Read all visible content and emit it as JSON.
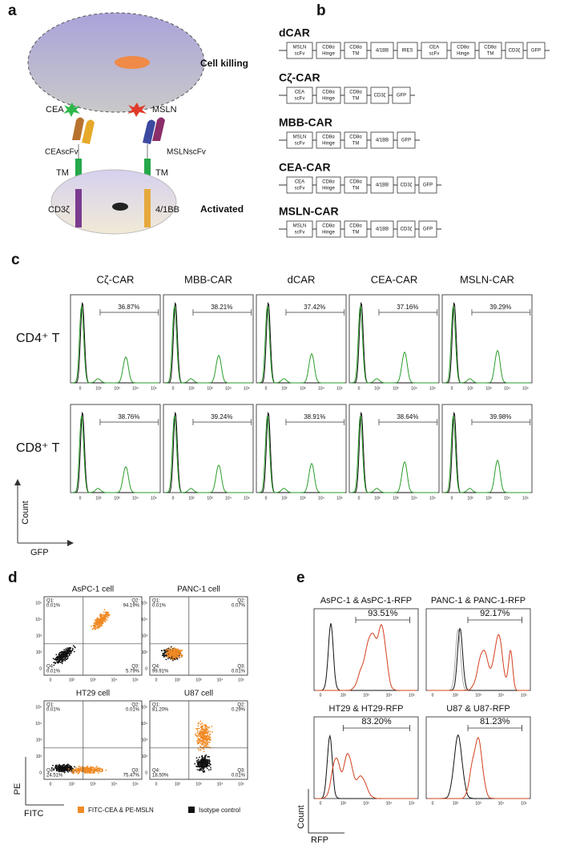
{
  "panel_a": {
    "label": "a",
    "cell_killing": "Cell killing",
    "cea": "CEA",
    "msln": "MSLN",
    "cea_scfv": "CEAscFv",
    "msln_scfv": "MSLNscFv",
    "tm_left": "TM",
    "tm_right": "TM",
    "cd3z": "CD3ζ",
    "bb": "4/1BB",
    "activated": "Activated"
  },
  "panel_b": {
    "label": "b",
    "constructs": [
      {
        "name": "dCAR",
        "parts": [
          [
            "MSLN",
            "scFv"
          ],
          [
            "CD8α",
            "Hinge"
          ],
          [
            "CD8α",
            "TM"
          ],
          [
            "4/1BB"
          ],
          [
            "IRES"
          ],
          [
            "CEA",
            "scFv"
          ],
          [
            "CD8α",
            "Hinge"
          ],
          [
            "CD8α",
            "TM"
          ],
          [
            "CD3ζ"
          ],
          [
            "GFP"
          ]
        ]
      },
      {
        "name": "Cζ-CAR",
        "parts": [
          [
            "CEA",
            "scFv"
          ],
          [
            "CD8α",
            "Hinge"
          ],
          [
            "CD8α",
            "TM"
          ],
          [
            "CD3ζ"
          ],
          [
            "GFP"
          ]
        ]
      },
      {
        "name": "MBB-CAR",
        "parts": [
          [
            "MSLN",
            "scFv"
          ],
          [
            "CD8α",
            "Hinge"
          ],
          [
            "CD8α",
            "TM"
          ],
          [
            "4/1BB"
          ],
          [
            "GFP"
          ]
        ]
      },
      {
        "name": "CEA-CAR",
        "parts": [
          [
            "CEA",
            "scFv"
          ],
          [
            "CD8α",
            "Hinge"
          ],
          [
            "CD8α",
            "TM"
          ],
          [
            "4/1BB"
          ],
          [
            "CD3ζ"
          ],
          [
            "GFP"
          ]
        ]
      },
      {
        "name": "MSLN-CAR",
        "parts": [
          [
            "MSLN",
            "scFv"
          ],
          [
            "CD8α",
            "Hinge"
          ],
          [
            "CD8α",
            "TM"
          ],
          [
            "4/1BB"
          ],
          [
            "CD3ζ"
          ],
          [
            "GFP"
          ]
        ]
      }
    ]
  },
  "panel_c": {
    "label": "c",
    "columns": [
      "Cζ-CAR",
      "MBB-CAR",
      "dCAR",
      "CEA-CAR",
      "MSLN-CAR"
    ],
    "rows": [
      {
        "name": "CD4⁺ T",
        "percents": [
          "36.87%",
          "38.21%",
          "37.42%",
          "37.16%",
          "39.29%"
        ]
      },
      {
        "name": "CD8⁺ T",
        "percents": [
          "38.76%",
          "39.24%",
          "38.91%",
          "38.64%",
          "39.98%"
        ]
      }
    ],
    "x_ticks": [
      "0",
      "10²",
      "10³",
      "10⁴",
      "10⁵"
    ],
    "y_axis": "Count",
    "x_axis": "GFP"
  },
  "panel_d": {
    "label": "d",
    "plots": [
      {
        "title": "AsPC-1 cell",
        "quadrants": [
          {
            "name": "Q1:",
            "value": "0.01%"
          },
          {
            "name": "Q2:",
            "value": "94.19%"
          },
          {
            "name": "Q3:",
            "value": "5.79%"
          },
          {
            "name": "Q4:",
            "value": "0.01%"
          }
        ]
      },
      {
        "title": "PANC-1 cell",
        "quadrants": [
          {
            "name": "Q1:",
            "value": "0.01%"
          },
          {
            "name": "Q2:",
            "value": "0.07%"
          },
          {
            "name": "Q3:",
            "value": "0.01%"
          },
          {
            "name": "Q4:",
            "value": "99.91%"
          }
        ]
      },
      {
        "title": "HT29 cell",
        "quadrants": [
          {
            "name": "Q1:",
            "value": "0.01%"
          },
          {
            "name": "Q2:",
            "value": "0.01%"
          },
          {
            "name": "Q3:",
            "value": "75.47%"
          },
          {
            "name": "Q4:",
            "value": "24.51%"
          }
        ]
      },
      {
        "title": "U87 cell",
        "quadrants": [
          {
            "name": "Q1:",
            "value": "81.20%"
          },
          {
            "name": "Q2:",
            "value": "0.29%"
          },
          {
            "name": "Q3:",
            "value": "0.01%"
          },
          {
            "name": "Q4:",
            "value": "18.50%"
          }
        ]
      }
    ],
    "x_ticks": [
      "0",
      "10²",
      "10³",
      "10⁴",
      "10⁵"
    ],
    "y_ticks": [
      "0",
      "10²",
      "10³",
      "10⁴",
      "10⁵"
    ],
    "y_axis": "PE",
    "x_axis": "FITC",
    "legend": [
      "FITC-CEA & PE-MSLN",
      "Isotype control"
    ]
  },
  "panel_e": {
    "label": "e",
    "plots": [
      {
        "title": "AsPC-1 & AsPC-1-RFP",
        "percent": "93.51%"
      },
      {
        "title": "PANC-1 & PANC-1-RFP",
        "percent": "92.17%"
      },
      {
        "title": "HT29 & HT29-RFP",
        "percent": "83.20%"
      },
      {
        "title": "U87 & U87-RFP",
        "percent": "81.23%"
      }
    ],
    "x_ticks": [
      "0",
      "10²",
      "10³",
      "10⁴",
      "10⁵"
    ],
    "y_axis": "Count",
    "x_axis": "RFP"
  }
}
